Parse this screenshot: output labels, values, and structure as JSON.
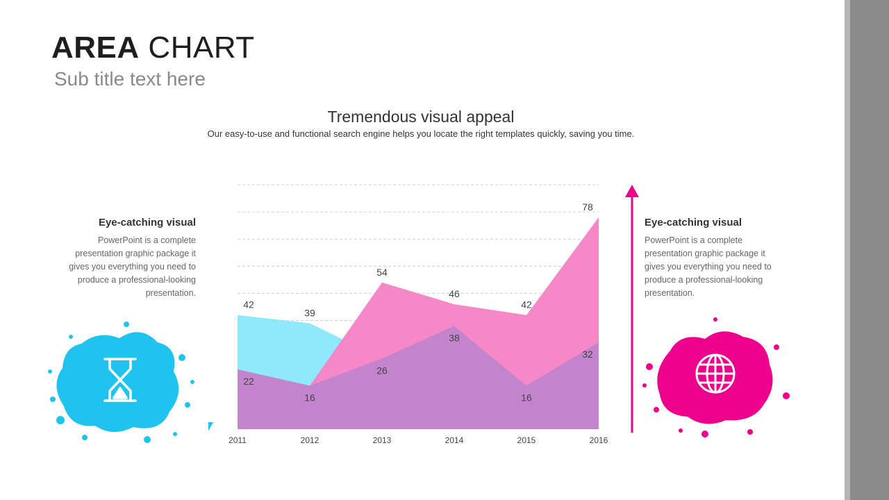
{
  "header": {
    "title_bold": "AREA",
    "title_rest": "CHART",
    "subtitle": "Sub title text here"
  },
  "intro": {
    "heading": "Tremendous visual appeal",
    "description": "Our easy-to-use and functional search engine helps you locate the right templates quickly, saving you time."
  },
  "left_panel": {
    "heading": "Eye-catching visual",
    "body": "PowerPoint is a complete presentation graphic package it gives you everything you need to produce a professional-looking presentation.",
    "icon": "hourglass-icon",
    "color": "#1EC3F0"
  },
  "right_panel": {
    "heading": "Eye-catching visual",
    "body": "PowerPoint is a complete presentation graphic package it gives you everything you need to produce a professional-looking presentation.",
    "icon": "globe-icon",
    "color": "#EC008C"
  },
  "chart_data": {
    "type": "area",
    "categories": [
      "2011",
      "2012",
      "2013",
      "2014",
      "2015",
      "2016"
    ],
    "series": [
      {
        "values": [
          42,
          39,
          26,
          38,
          16,
          32
        ],
        "color": "#8FE9FB"
      },
      {
        "values": [
          22,
          16,
          54,
          46,
          42,
          78
        ],
        "color": "#F589C8"
      }
    ],
    "overlap_color": "#C384CD",
    "ylim": [
      0,
      90
    ],
    "grid": true
  }
}
